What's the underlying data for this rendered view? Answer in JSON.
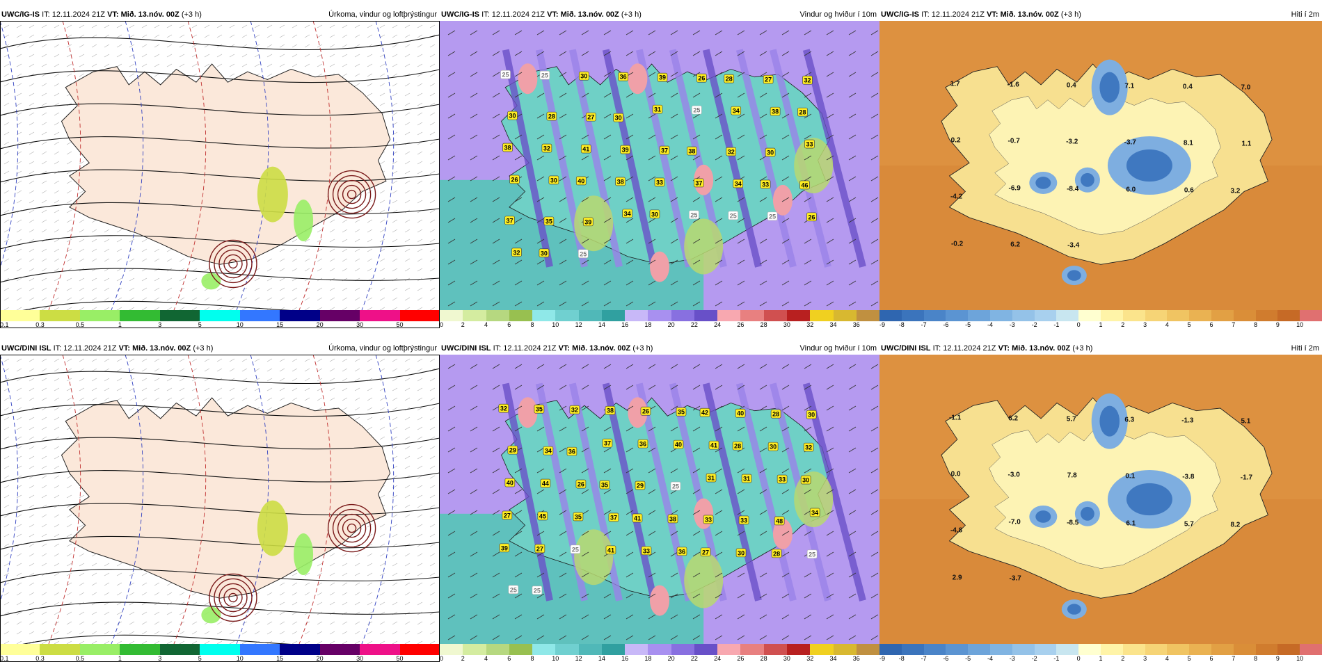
{
  "rows": [
    {
      "model": "UWC/IG-IS",
      "panels": [
        {
          "title": "Úrkoma, vindur og loftþrýstingur",
          "kind": "precip",
          "values": []
        },
        {
          "title": "Vindur og hviður í 10m",
          "kind": "wind",
          "values": [
            "25",
            "25",
            "30",
            "36",
            "39",
            "26",
            "28",
            "27",
            "32",
            "30",
            "28",
            "27",
            "30",
            "31",
            "25",
            "34",
            "38",
            "28",
            "38",
            "32",
            "41",
            "39",
            "37",
            "38",
            "32",
            "30",
            "33",
            "26",
            "30",
            "40",
            "38",
            "33",
            "37",
            "34",
            "33",
            "46",
            "37",
            "35",
            "39",
            "34",
            "30",
            "25",
            "25",
            "25",
            "26",
            "32",
            "30",
            "25"
          ]
        },
        {
          "title": "Hiti í 2m",
          "kind": "temp",
          "values": [
            "1.7",
            "-1.6",
            "0.4",
            "7.1",
            "0.4",
            "7.0",
            "0.2",
            "-0.7",
            "-3.2",
            "-3.7",
            "8.1",
            "1.1",
            "-4.2",
            "-6.9",
            "-8.4",
            "6.0",
            "0.6",
            "3.2",
            "-0.2",
            "6.2",
            "-3.4"
          ]
        }
      ]
    },
    {
      "model": "UWC/DINI ISL",
      "panels": [
        {
          "title": "Úrkoma, vindur og loftþrýstingur",
          "kind": "precip",
          "values": []
        },
        {
          "title": "Vindur og hviður í 10m",
          "kind": "wind",
          "values": [
            "32",
            "35",
            "32",
            "38",
            "26",
            "35",
            "42",
            "40",
            "28",
            "30",
            "29",
            "34",
            "36",
            "37",
            "36",
            "40",
            "41",
            "28",
            "30",
            "32",
            "40",
            "44",
            "26",
            "35",
            "29",
            "25",
            "31",
            "31",
            "33",
            "30",
            "27",
            "45",
            "35",
            "37",
            "41",
            "38",
            "33",
            "33",
            "48",
            "34",
            "39",
            "27",
            "25",
            "41",
            "33",
            "36",
            "27",
            "30",
            "28",
            "25",
            "25",
            "25"
          ]
        },
        {
          "title": "Hiti í 2m",
          "kind": "temp",
          "values": [
            "-1.1",
            "6.2",
            "5.7",
            "6.3",
            "-1.3",
            "5.1",
            "0.0",
            "-3.0",
            "7.8",
            "0.1",
            "-3.8",
            "-1.7",
            "-4.8",
            "-7.0",
            "-8.5",
            "6.1",
            "5.7",
            "8.2",
            "2.9",
            "-3.7"
          ]
        }
      ]
    }
  ],
  "header": {
    "it_label": "IT:",
    "it_value": "12.11.2024 21Z",
    "vt_label": "VT:",
    "vt_value": "Mið. 13.nóv. 00Z",
    "lead": "(+3 h)"
  },
  "legends": {
    "precip": {
      "ticks": [
        "0.1",
        "0.3",
        "0.5",
        "1",
        "3",
        "5",
        "10",
        "15",
        "20",
        "30",
        "50"
      ],
      "colors": [
        "#ffff99",
        "#ccdd44",
        "#99ee66",
        "#33bb33",
        "#116633",
        "#00ffee",
        "#3377ff",
        "#000088",
        "#660066",
        "#ee1188",
        "#ff0000"
      ]
    },
    "wind": {
      "ticks": [
        "0",
        "2",
        "4",
        "6",
        "8",
        "10",
        "12",
        "14",
        "16",
        "18",
        "20",
        "22",
        "24",
        "26",
        "28",
        "30",
        "32",
        "34",
        "36"
      ],
      "colors": [
        "#f0f8d0",
        "#d4eca0",
        "#b6d880",
        "#98c050",
        "#8fe8e8",
        "#70d0d0",
        "#50b8b8",
        "#30a0a0",
        "#c8b8f8",
        "#a890f0",
        "#8870e0",
        "#6850c8",
        "#f8a8b0",
        "#e88080",
        "#d05050",
        "#b82020",
        "#f0d020",
        "#d8b830",
        "#c09040"
      ]
    },
    "temp": {
      "ticks": [
        "-9",
        "-8",
        "-7",
        "-6",
        "-5",
        "-4",
        "-3",
        "-2",
        "-1",
        "0",
        "1",
        "2",
        "3",
        "4",
        "5",
        "6",
        "7",
        "8",
        "9",
        "10"
      ],
      "colors": [
        "#2f66b0",
        "#3b74bc",
        "#4a84c8",
        "#5b94d2",
        "#6da4da",
        "#80b4e2",
        "#94c2e8",
        "#a8d0ee",
        "#c8e6f0",
        "#ffffd0",
        "#fff4a8",
        "#fbe48c",
        "#f6d476",
        "#f0c462",
        "#eab252",
        "#e2a044",
        "#da8e38",
        "#d07c2e",
        "#c66a26",
        "#e07070"
      ]
    }
  }
}
